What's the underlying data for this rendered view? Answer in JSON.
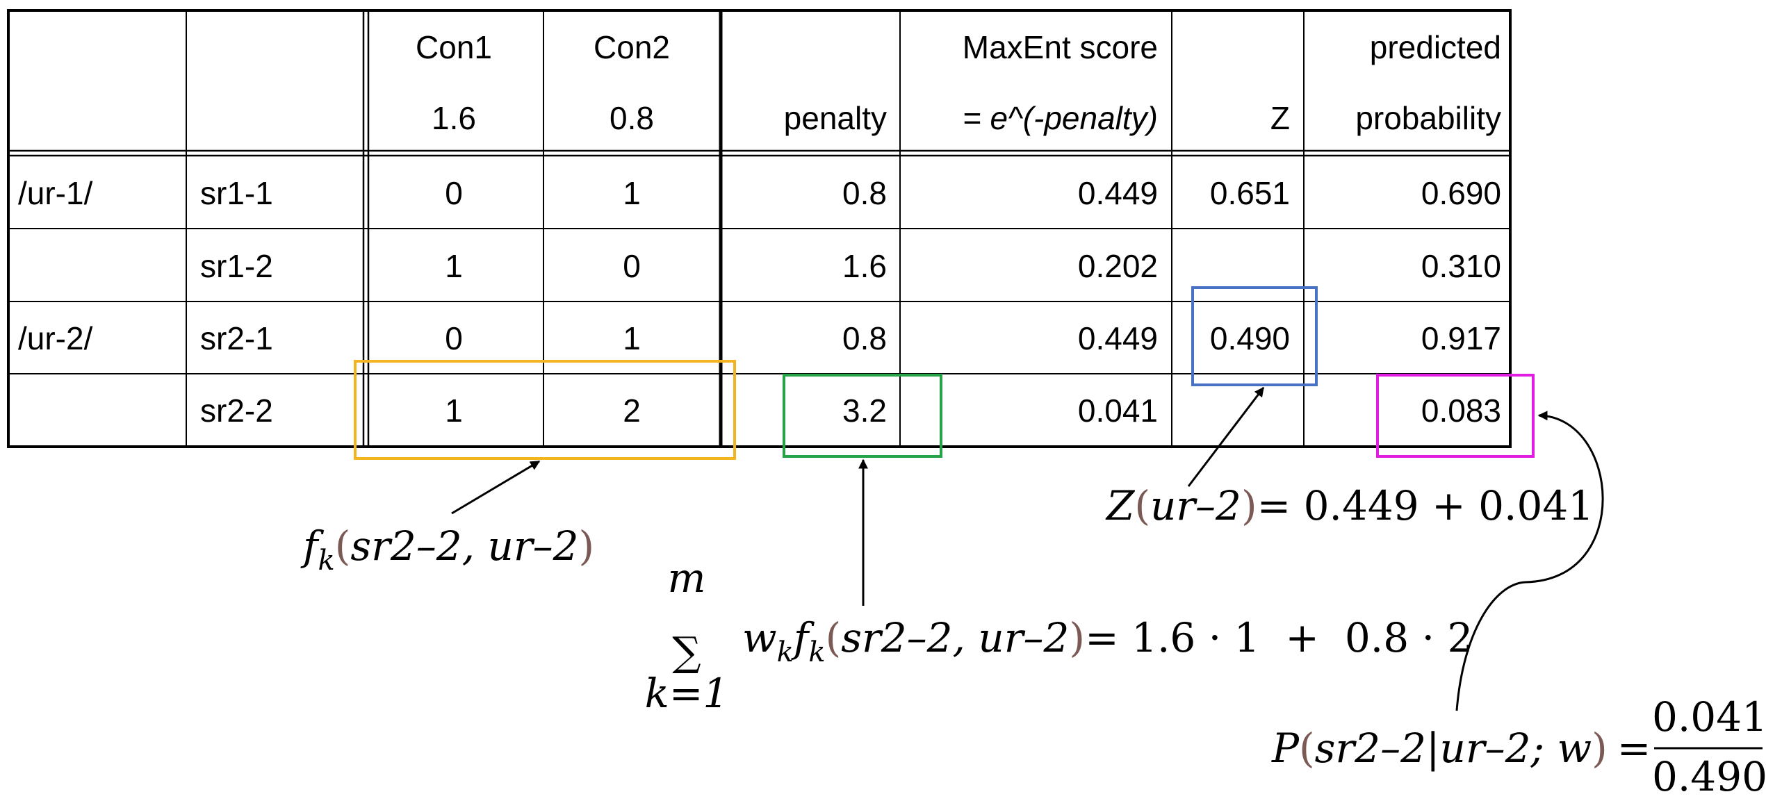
{
  "table": {
    "header": {
      "row1": [
        "",
        "",
        "Con1",
        "Con2",
        "",
        "MaxEnt score",
        "",
        "predicted"
      ],
      "row2": [
        "",
        "",
        "1.6",
        "0.8",
        "penalty",
        "= e^(-penalty)",
        "Z",
        "probability"
      ]
    },
    "rows": [
      [
        "/ur-1/",
        "sr1-1",
        "0",
        "1",
        "0.8",
        "0.449",
        "0.651",
        "0.690"
      ],
      [
        "",
        "sr1-2",
        "1",
        "0",
        "1.6",
        "0.202",
        "",
        "0.310"
      ],
      [
        "/ur-2/",
        "sr2-1",
        "0",
        "1",
        "0.8",
        "0.449",
        "0.490",
        "0.917"
      ],
      [
        "",
        "sr2-2",
        "1",
        "2",
        "3.2",
        "0.041",
        "",
        "0.083"
      ]
    ]
  },
  "highlights": {
    "violations": "#f3b41f",
    "penalty": "#25a346",
    "z": "#4a72c4",
    "probability": "#e11de1"
  },
  "annotations": {
    "fk": {
      "f": "f",
      "k": "k",
      "open": "(",
      "args": "sr2–2, ur–2",
      "close": ")"
    },
    "sum": {
      "upper": "m",
      "sigma": "∑",
      "lower": "k=1",
      "w": "w",
      "wk": "k",
      "f": "f",
      "fk": "k",
      "open": "(",
      "args": "sr2–2, ur–2",
      "close": ")",
      "rhs": "= 1.6 · 1  +  0.8 · 2"
    },
    "z": {
      "Z": "Z",
      "open": "(",
      "arg": "ur–2",
      "close": ")",
      "rhs": "= 0.449 + 0.041"
    },
    "p": {
      "P": "P",
      "open": "(",
      "args": "sr2–2|ur–2; w",
      "close": ")",
      "eq": "=",
      "num": "0.041",
      "den": "0.490"
    }
  }
}
